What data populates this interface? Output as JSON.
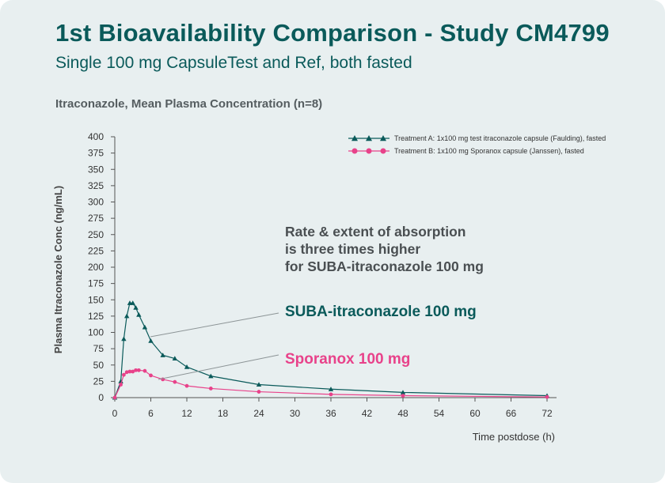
{
  "header": {
    "title": "1st Bioavailability Comparison - Study CM4799",
    "subtitle": "Single 100 mg CapsuleTest and Ref, both fasted"
  },
  "colors": {
    "series_a": "#0a5a5a",
    "series_b": "#e8428a",
    "title": "#0a5a5a",
    "background": "#e8eff0"
  },
  "chart_data": {
    "type": "line",
    "title": "Itraconazole, Mean Plasma Concentration (n=8)",
    "xlabel": "Time postdose (h)",
    "ylabel": "Plasma Itraconazole Conc (ng/mL)",
    "xlim": [
      0,
      72
    ],
    "ylim": [
      0,
      400
    ],
    "xticks": [
      0,
      6,
      12,
      18,
      24,
      30,
      36,
      42,
      48,
      54,
      60,
      66,
      72
    ],
    "yticks": [
      0,
      25,
      50,
      75,
      100,
      125,
      150,
      175,
      200,
      225,
      250,
      275,
      300,
      325,
      350,
      375,
      400
    ],
    "grid": false,
    "legend_position": "top-right",
    "series": [
      {
        "name": "Treatment A: 1x100 mg test itraconazole capsule (Faulding), fasted",
        "marker": "triangle",
        "x": [
          0,
          1,
          1.5,
          2,
          2.5,
          3,
          3.5,
          4,
          5,
          6,
          8,
          10,
          12,
          16,
          24,
          36,
          48,
          72
        ],
        "y": [
          0,
          25,
          90,
          125,
          145,
          145,
          138,
          127,
          108,
          87,
          65,
          60,
          47,
          33,
          20,
          13,
          8,
          3
        ]
      },
      {
        "name": "Treatment B: 1x100 mg Sporanox capsule (Janssen), fasted",
        "marker": "circle",
        "x": [
          0,
          1,
          1.5,
          2,
          2.5,
          3,
          3.5,
          4,
          5,
          6,
          8,
          10,
          12,
          16,
          24,
          36,
          48,
          72
        ],
        "y": [
          0,
          20,
          35,
          39,
          40,
          40,
          42,
          42,
          41,
          34,
          28,
          24,
          18,
          14,
          9,
          5,
          3,
          1
        ]
      }
    ],
    "annotations": {
      "main": [
        "Rate & extent of absorption",
        "is three times higher",
        "for SUBA-itraconazole 100 mg"
      ],
      "series_a_label": "SUBA-itraconazole 100 mg",
      "series_b_label": "Sporanox 100 mg"
    }
  }
}
